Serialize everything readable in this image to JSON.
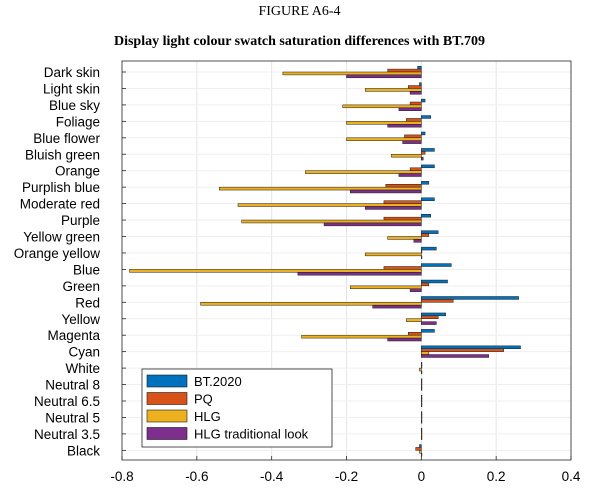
{
  "figure": {
    "label": "FIGURE A6-4",
    "title": "Display light colour swatch saturation differences with BT.709"
  },
  "chart_data": {
    "type": "bar",
    "orientation": "horizontal",
    "categories": [
      "Dark skin",
      "Light skin",
      "Blue sky",
      "Foliage",
      "Blue flower",
      "Bluish green",
      "Orange",
      "Purplish blue",
      "Moderate red",
      "Purple",
      "Yellow green",
      "Orange yellow",
      "Blue",
      "Green",
      "Red",
      "Yellow",
      "Magenta",
      "Cyan",
      "White",
      "Neutral 8",
      "Neutral 6.5",
      "Neutral 5",
      "Neutral 3.5",
      "Black"
    ],
    "series": [
      {
        "name": "BT.2020",
        "color": "#0072BD",
        "values": [
          -0.01,
          -0.005,
          0.01,
          0.025,
          0.01,
          0.035,
          0.035,
          0.02,
          0.035,
          0.025,
          0.045,
          0.04,
          0.08,
          0.07,
          0.26,
          0.065,
          0.035,
          0.265,
          0.0,
          0.0,
          0.0,
          0.0,
          0.0,
          -0.005
        ]
      },
      {
        "name": "PQ",
        "color": "#D95319",
        "values": [
          -0.09,
          -0.035,
          -0.03,
          -0.04,
          -0.045,
          0.01,
          -0.03,
          -0.095,
          -0.1,
          -0.1,
          0.02,
          0.0,
          -0.1,
          0.02,
          0.085,
          0.045,
          -0.035,
          0.22,
          0.0,
          0.0,
          0.0,
          0.0,
          0.0,
          -0.015
        ]
      },
      {
        "name": "HLG",
        "color": "#EDB120",
        "values": [
          -0.37,
          -0.15,
          -0.21,
          -0.2,
          -0.2,
          -0.08,
          -0.31,
          -0.54,
          -0.49,
          -0.48,
          -0.09,
          -0.15,
          -0.78,
          -0.19,
          -0.59,
          -0.04,
          -0.32,
          0.02,
          -0.005,
          0.0,
          0.0,
          0.0,
          0.0,
          -0.005
        ]
      },
      {
        "name": "HLG traditional look",
        "color": "#7E2F8E",
        "values": [
          -0.2,
          -0.03,
          -0.06,
          -0.09,
          -0.05,
          0.005,
          -0.06,
          -0.19,
          -0.15,
          -0.26,
          -0.02,
          0.0,
          -0.33,
          -0.03,
          -0.13,
          0.04,
          -0.09,
          0.18,
          0.0,
          0.0,
          0.0,
          0.0,
          0.0,
          0.0
        ]
      }
    ],
    "xlim": [
      -0.8,
      0.4
    ],
    "xticks": [
      "-0.8",
      "-0.6",
      "-0.4",
      "-0.2",
      "0",
      "0.2",
      "0.4"
    ],
    "xtick_values": [
      -0.8,
      -0.6,
      -0.4,
      -0.2,
      0,
      0.2,
      0.4
    ],
    "grid": "x",
    "legend_position": "bottom-left"
  }
}
